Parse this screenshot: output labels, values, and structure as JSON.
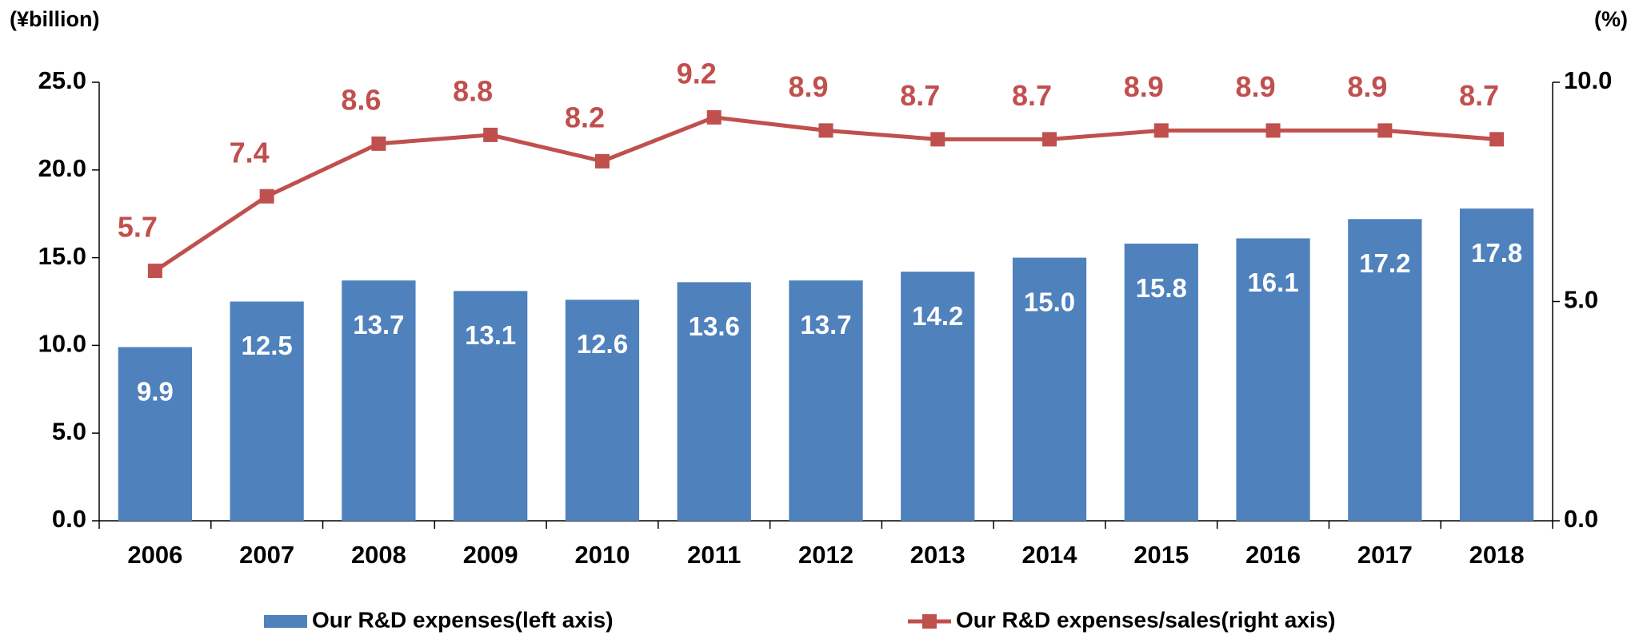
{
  "chart_data": {
    "type": "bar-line",
    "y_axis_label": "(¥billion)",
    "y2_axis_label": "(%)",
    "categories": [
      "2006",
      "2007",
      "2008",
      "2009",
      "2010",
      "2011",
      "2012",
      "2013",
      "2014",
      "2015",
      "2016",
      "2017",
      "2018"
    ],
    "series": [
      {
        "name": "Our R&D expenses(left axis)",
        "type": "bar",
        "color": "#4f81bd",
        "values": [
          9.9,
          12.5,
          13.7,
          13.1,
          12.6,
          13.6,
          13.7,
          14.2,
          15.0,
          15.8,
          16.1,
          17.2,
          17.8
        ],
        "value_labels": [
          "9.9",
          "12.5",
          "13.7",
          "13.1",
          "12.6",
          "13.6",
          "13.7",
          "14.2",
          "15.0",
          "15.8",
          "16.1",
          "17.2",
          "17.8"
        ]
      },
      {
        "name": "Our R&D expenses/sales(right axis)",
        "type": "line",
        "axis": "y2",
        "color": "#c0504d",
        "values": [
          5.7,
          7.4,
          8.6,
          8.8,
          8.2,
          9.2,
          8.9,
          8.7,
          8.7,
          8.9,
          8.9,
          8.9,
          8.7
        ],
        "value_labels": [
          "5.7",
          "7.4",
          "8.6",
          "8.8",
          "8.2",
          "9.2",
          "8.9",
          "8.7",
          "8.7",
          "8.9",
          "8.9",
          "8.9",
          "8.7"
        ]
      }
    ],
    "ylim": [
      0,
      25
    ],
    "yticks": [
      {
        "value": 0,
        "label": "0.0"
      },
      {
        "value": 5,
        "label": "5.0"
      },
      {
        "value": 10,
        "label": "10.0"
      },
      {
        "value": 15,
        "label": "15.0"
      },
      {
        "value": 20,
        "label": "20.0"
      },
      {
        "value": 25,
        "label": "25.0"
      }
    ],
    "y2lim": [
      0,
      10
    ],
    "y2ticks": [
      {
        "value": 0,
        "label": "0.0"
      },
      {
        "value": 5,
        "label": "5.0"
      },
      {
        "value": 10,
        "label": "10.0"
      }
    ],
    "legend": "bottom"
  }
}
